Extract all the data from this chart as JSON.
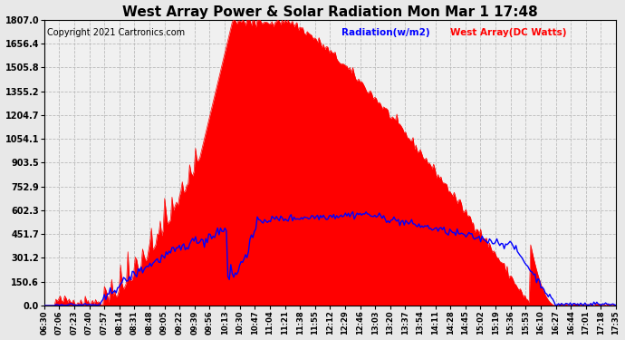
{
  "title": "West Array Power & Solar Radiation Mon Mar 1 17:48",
  "copyright": "Copyright 2021 Cartronics.com",
  "legend_radiation": "Radiation(w/m2)",
  "legend_west": "West Array(DC Watts)",
  "ylim": [
    0.0,
    1807.0
  ],
  "yticks": [
    0.0,
    150.6,
    301.2,
    451.7,
    602.3,
    752.9,
    903.5,
    1054.1,
    1204.7,
    1355.2,
    1505.8,
    1656.4,
    1807.0
  ],
  "bg_color": "#e8e8e8",
  "plot_bg_color": "#f0f0f0",
  "grid_color": "#bbbbbb",
  "radiation_color": "#ff0000",
  "west_array_color": "#0000ff",
  "title_fontsize": 11,
  "copyright_fontsize": 7,
  "xtick_labels": [
    "06:30",
    "07:06",
    "07:23",
    "07:40",
    "07:57",
    "08:14",
    "08:31",
    "08:48",
    "09:05",
    "09:22",
    "09:39",
    "09:56",
    "10:13",
    "10:30",
    "10:47",
    "11:04",
    "11:21",
    "11:38",
    "11:55",
    "12:12",
    "12:29",
    "12:46",
    "13:03",
    "13:20",
    "13:37",
    "13:54",
    "14:11",
    "14:28",
    "14:45",
    "15:02",
    "15:19",
    "15:36",
    "15:53",
    "16:10",
    "16:27",
    "16:44",
    "17:01",
    "17:18",
    "17:35"
  ],
  "n_points": 390
}
